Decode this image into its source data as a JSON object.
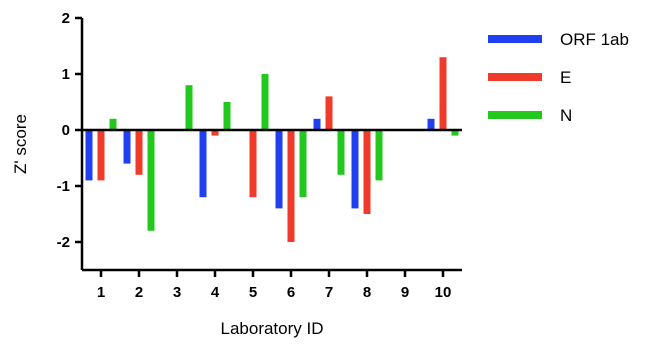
{
  "chart_data": {
    "type": "bar",
    "categories": [
      "1",
      "2",
      "3",
      "4",
      "5",
      "6",
      "7",
      "8",
      "9",
      "10"
    ],
    "series": [
      {
        "name": "ORF 1ab",
        "color": "#1f3ff0",
        "values": [
          -0.9,
          -0.6,
          0,
          -1.2,
          0,
          -1.4,
          0.2,
          -1.4,
          0,
          0.2
        ]
      },
      {
        "name": "E",
        "color": "#f03a2a",
        "values": [
          -0.9,
          -0.8,
          0,
          -0.1,
          -1.2,
          -2.0,
          0.6,
          -1.5,
          0,
          1.3
        ]
      },
      {
        "name": "N",
        "color": "#22c81e",
        "values": [
          0.2,
          -1.8,
          0.8,
          0.5,
          1.0,
          -1.2,
          -0.8,
          -0.9,
          0,
          -0.1
        ]
      }
    ],
    "xlabel": "Laboratory ID",
    "ylabel": "Z' score",
    "ylim": [
      -2.5,
      2
    ],
    "yticks": [
      "2",
      "1",
      "0",
      "-1",
      "-2"
    ],
    "legend_position": "right",
    "grid": false
  }
}
